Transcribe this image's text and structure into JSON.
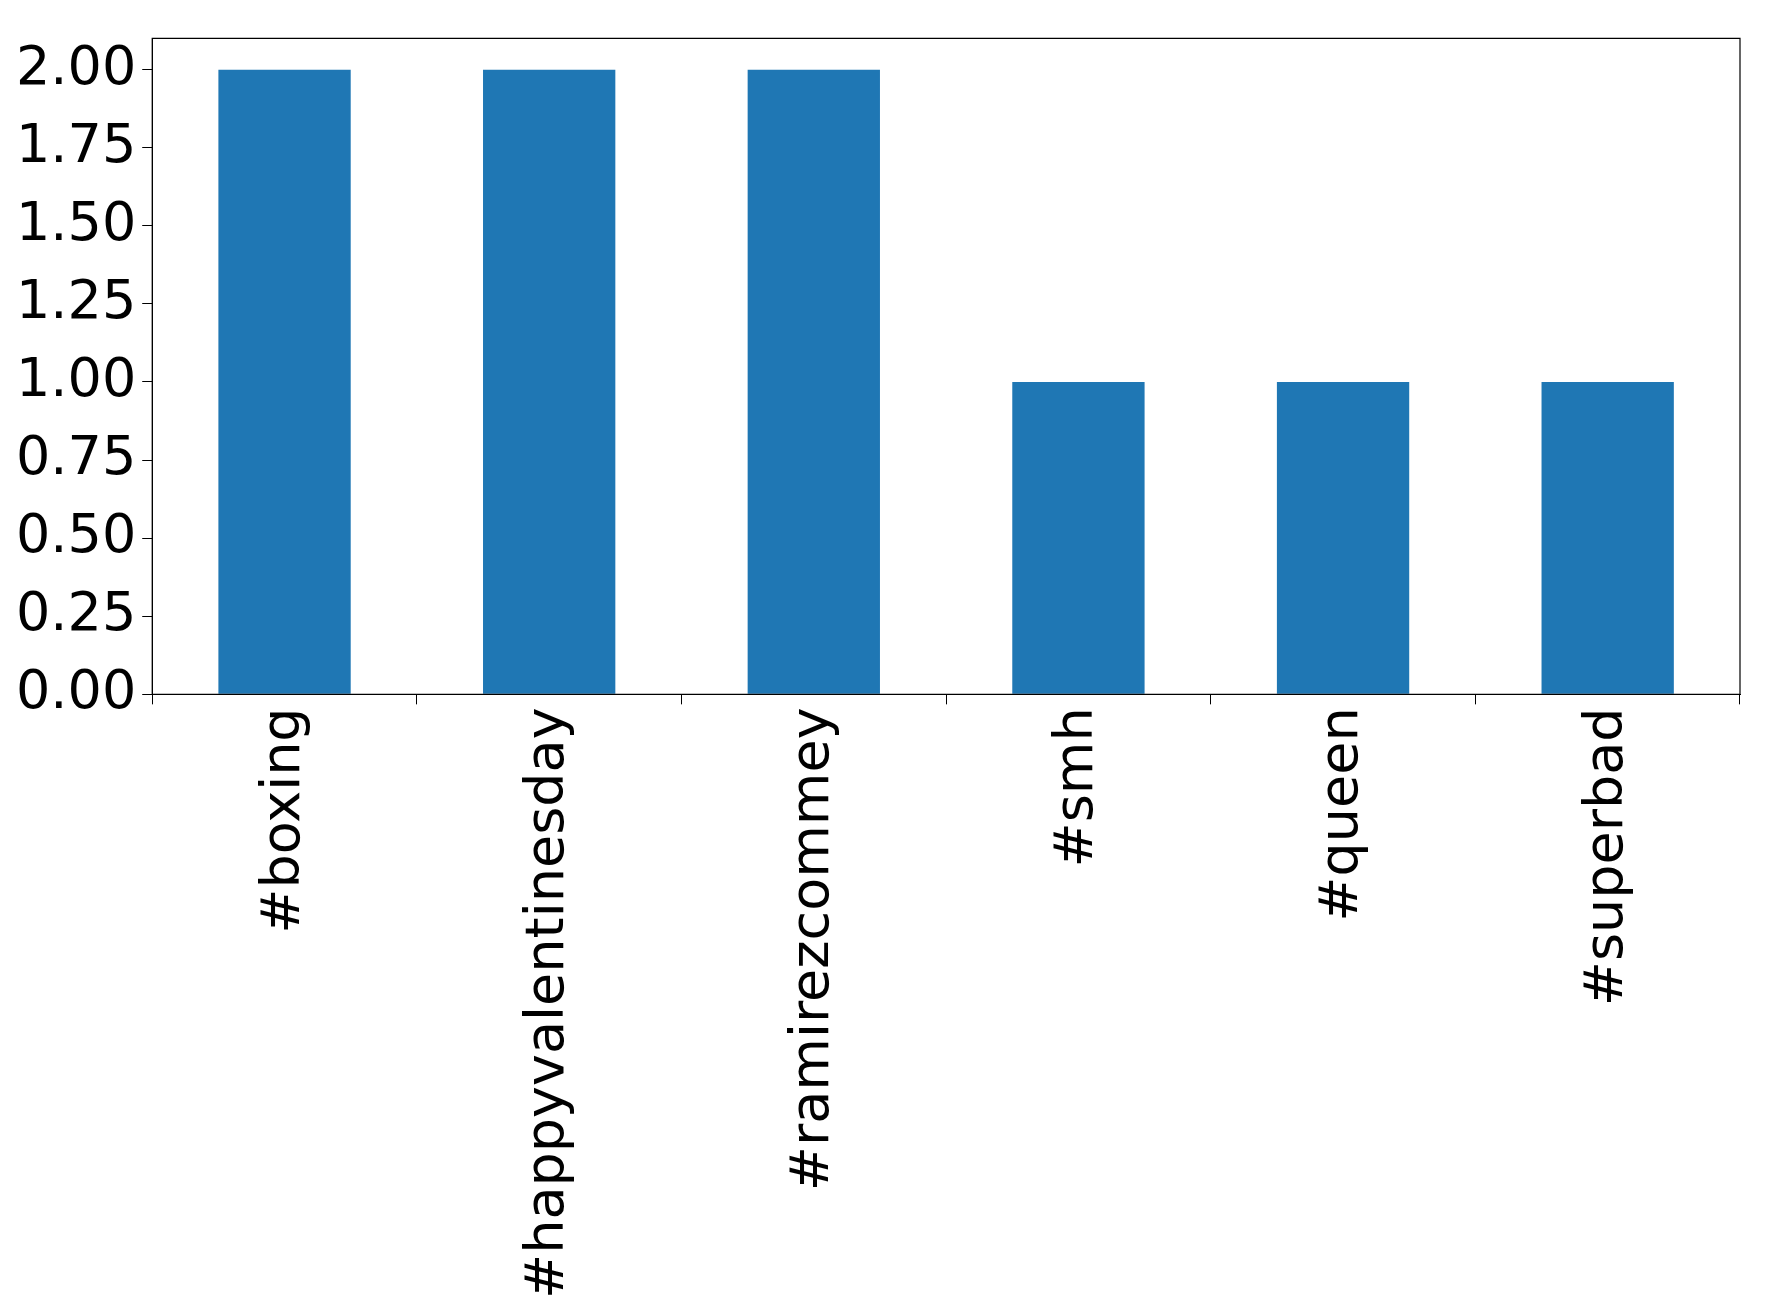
{
  "chart_data": {
    "type": "bar",
    "categories": [
      "#boxing",
      "#happyvalentinesday",
      "#ramirezcommey",
      "#smh",
      "#queen",
      "#superbad"
    ],
    "values": [
      2,
      2,
      2,
      1,
      1,
      1
    ],
    "color": "#1f77b4",
    "ylim": [
      0,
      2.1
    ],
    "yticks": [
      {
        "value": 0,
        "label": "0.00"
      },
      {
        "value": 0.25,
        "label": "0.25"
      },
      {
        "value": 0.5,
        "label": "0.50"
      },
      {
        "value": 0.75,
        "label": "0.75"
      },
      {
        "value": 1,
        "label": "1.00"
      },
      {
        "value": 1.25,
        "label": "1.25"
      },
      {
        "value": 1.5,
        "label": "1.50"
      },
      {
        "value": 1.75,
        "label": "1.75"
      },
      {
        "value": 2,
        "label": "2.00"
      }
    ],
    "grid": false,
    "legend": false
  }
}
